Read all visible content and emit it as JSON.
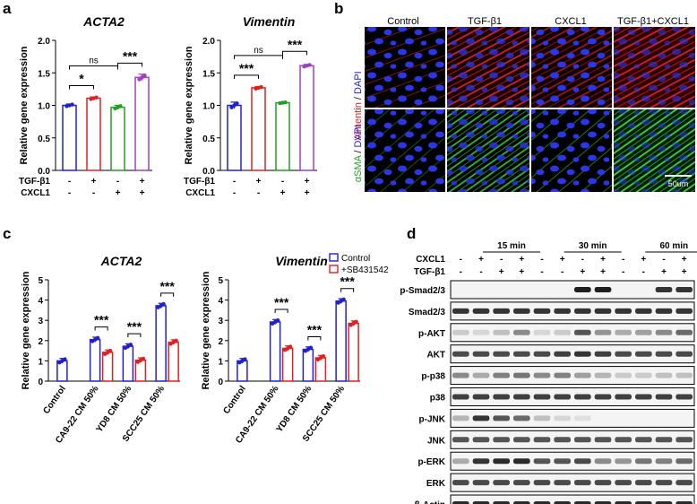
{
  "panel_labels": {
    "a": "a",
    "b": "b",
    "c": "c",
    "d": "d"
  },
  "chart_data": [
    {
      "id": "a1",
      "type": "bar",
      "title": "ACTA2",
      "ylabel": "Relative gene expression",
      "ylim": [
        0,
        2
      ],
      "yticks": [
        "0.0",
        "0.5",
        "1.0",
        "1.5",
        "2.0"
      ],
      "values": [
        1.0,
        1.11,
        0.97,
        1.43
      ],
      "errors": [
        0.02,
        0.02,
        0.03,
        0.05
      ],
      "colors": [
        "#2020d0",
        "#e02020",
        "#20a020",
        "#a040c0"
      ],
      "row_labels": [
        "TGF-β1",
        "CXCL1"
      ],
      "rows": [
        [
          "-",
          "+",
          "-",
          "+"
        ],
        [
          "-",
          "-",
          "+",
          "+"
        ]
      ],
      "significance": [
        "*",
        "ns",
        "***"
      ]
    },
    {
      "id": "a2",
      "type": "bar",
      "title": "Vimentin",
      "ylabel": "Relative gene expression",
      "ylim": [
        0,
        2
      ],
      "yticks": [
        "0.0",
        "0.5",
        "1.0",
        "1.5",
        "2.0"
      ],
      "values": [
        1.0,
        1.27,
        1.04,
        1.61
      ],
      "errors": [
        0.05,
        0.02,
        0.01,
        0.02
      ],
      "colors": [
        "#2020d0",
        "#e02020",
        "#20a020",
        "#a040c0"
      ],
      "row_labels": [
        "TGF-β1",
        "CXCL1"
      ],
      "rows": [
        [
          "-",
          "+",
          "-",
          "+"
        ],
        [
          "-",
          "-",
          "+",
          "+"
        ]
      ],
      "significance": [
        "***",
        "ns",
        "***"
      ]
    },
    {
      "id": "c1",
      "type": "bar",
      "title": "ACTA2",
      "ylabel": "Relative gene expression",
      "ylim": [
        0,
        5
      ],
      "yticks": [
        "0",
        "1",
        "2",
        "3",
        "4",
        "5"
      ],
      "categories": [
        "Control",
        "CA9-22 CM 50%",
        "YD8 CM 50%",
        "SCC25 CM 50%"
      ],
      "series": [
        {
          "name": "Control",
          "values": [
            1.0,
            2.05,
            1.72,
            3.72
          ],
          "color": "#2020d0"
        },
        {
          "name": "+SB431542",
          "values": [
            null,
            1.42,
            1.03,
            1.92
          ],
          "color": "#e02020"
        }
      ],
      "significance": [
        "***",
        "***",
        "***"
      ]
    },
    {
      "id": "c2",
      "type": "bar",
      "title": "Vimentin",
      "ylabel": "Relative gene expression",
      "ylim": [
        0,
        5
      ],
      "yticks": [
        "0",
        "1",
        "2",
        "3",
        "4",
        "5"
      ],
      "categories": [
        "Control",
        "CA9-22 CM 50%",
        "YD8 CM 50%",
        "SCC25 CM 50%"
      ],
      "series": [
        {
          "name": "Control",
          "values": [
            1.0,
            2.92,
            1.57,
            3.95
          ],
          "color": "#2020d0"
        },
        {
          "name": "+SB431542",
          "values": [
            null,
            1.62,
            1.15,
            2.85
          ],
          "color": "#e02020"
        }
      ],
      "significance": [
        "***",
        "***",
        "***"
      ]
    }
  ],
  "legend": [
    "Control",
    "+SB431542"
  ],
  "micrographs": {
    "columns": [
      "Control",
      "TGF-β1",
      "CXCL1",
      "TGF-β1+CXCL1"
    ],
    "row1_marker": "Vimentin",
    "row2_marker": "αSMA",
    "dapi": "DAPI",
    "sep": " / ",
    "scale_bar": "50um",
    "marker_colors": {
      "vimentin": "#e02020",
      "asma": "#20b020",
      "dapi": "#2020e0"
    }
  },
  "western": {
    "times": [
      "15 min",
      "30 min",
      "60 min"
    ],
    "row_labels": [
      "CXCL1",
      "TGF-β1"
    ],
    "cxcl1": [
      "-",
      "+",
      "-",
      "+",
      "-",
      "+",
      "-",
      "+",
      "-",
      "+",
      "-",
      "+"
    ],
    "tgf": [
      "-",
      "-",
      "+",
      "+",
      "-",
      "-",
      "+",
      "+",
      "-",
      "-",
      "+",
      "+"
    ],
    "blots": [
      "p-Smad2/3",
      "Smad2/3",
      "p-AKT",
      "AKT",
      "p-p38",
      "p38",
      "p-JNK",
      "JNK",
      "p-ERK",
      "ERK",
      "β-Actin"
    ],
    "intensity": [
      [
        0,
        0,
        0,
        0,
        0,
        0,
        0.95,
        0.95,
        0,
        0,
        0.85,
        0.85
      ],
      [
        0.85,
        0.85,
        0.85,
        0.85,
        0.85,
        0.85,
        0.85,
        0.85,
        0.85,
        0.85,
        0.85,
        0.85
      ],
      [
        0.15,
        0.1,
        0.2,
        0.45,
        0.1,
        0.15,
        0.7,
        0.4,
        0.3,
        0.35,
        0.45,
        0.6
      ],
      [
        0.75,
        0.75,
        0.75,
        0.75,
        0.75,
        0.8,
        0.85,
        0.8,
        0.75,
        0.75,
        0.75,
        0.75
      ],
      [
        0.45,
        0.3,
        0.5,
        0.55,
        0.45,
        0.5,
        0.35,
        0.25,
        0.15,
        0.15,
        0.2,
        0.2
      ],
      [
        0.8,
        0.8,
        0.8,
        0.8,
        0.8,
        0.8,
        0.8,
        0.8,
        0.8,
        0.8,
        0.8,
        0.8
      ],
      [
        0.25,
        0.85,
        0.7,
        0.6,
        0.2,
        0.1,
        0.05,
        0,
        0,
        0,
        0,
        0
      ],
      [
        0.7,
        0.7,
        0.7,
        0.7,
        0.7,
        0.7,
        0.7,
        0.7,
        0.7,
        0.7,
        0.7,
        0.7
      ],
      [
        0.3,
        0.85,
        0.9,
        0.9,
        0.7,
        0.7,
        0.75,
        0.45,
        0.4,
        0.55,
        0.5,
        0.6
      ],
      [
        0.75,
        0.75,
        0.75,
        0.75,
        0.75,
        0.75,
        0.75,
        0.75,
        0.75,
        0.75,
        0.75,
        0.75
      ],
      [
        0.9,
        0.9,
        0.9,
        0.9,
        0.9,
        0.9,
        0.9,
        0.9,
        0.9,
        0.9,
        0.9,
        0.9
      ]
    ]
  }
}
